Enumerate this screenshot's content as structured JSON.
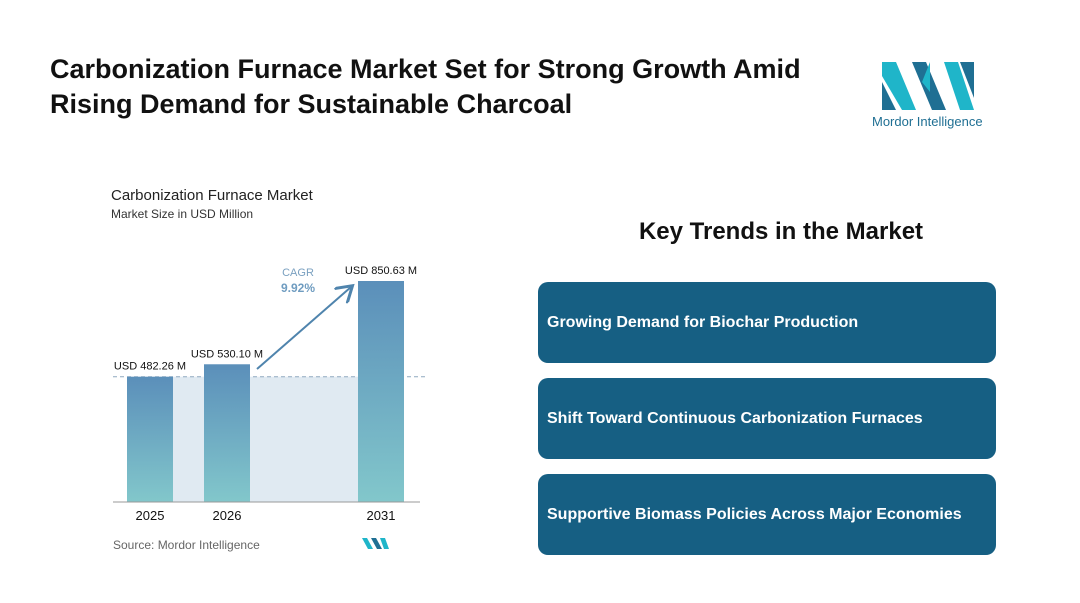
{
  "header": {
    "title": "Carbonization Furnace Market Set for Strong Growth Amid Rising Demand for Sustainable Charcoal"
  },
  "logo": {
    "text": "Mordor Intelligence"
  },
  "chart_data": {
    "type": "bar",
    "title": "Carbonization Furnace Market",
    "subtitle": "Market Size in USD Million",
    "categories": [
      "2025",
      "2026",
      "2031"
    ],
    "values": [
      482.26,
      530.1,
      850.63
    ],
    "value_labels": [
      "USD 482.26 M",
      "USD 530.10 M",
      "USD 850.63 M"
    ],
    "annotations": [
      "CAGR",
      "9.92%"
    ],
    "source": "Source: Mordor Intelligence"
  },
  "trends": {
    "title": "Key Trends in the Market",
    "items": [
      "Growing Demand for Biochar Production",
      "Shift Toward Continuous Carbonization Furnaces",
      "Supportive Biomass Policies Across Major Economies"
    ]
  }
}
